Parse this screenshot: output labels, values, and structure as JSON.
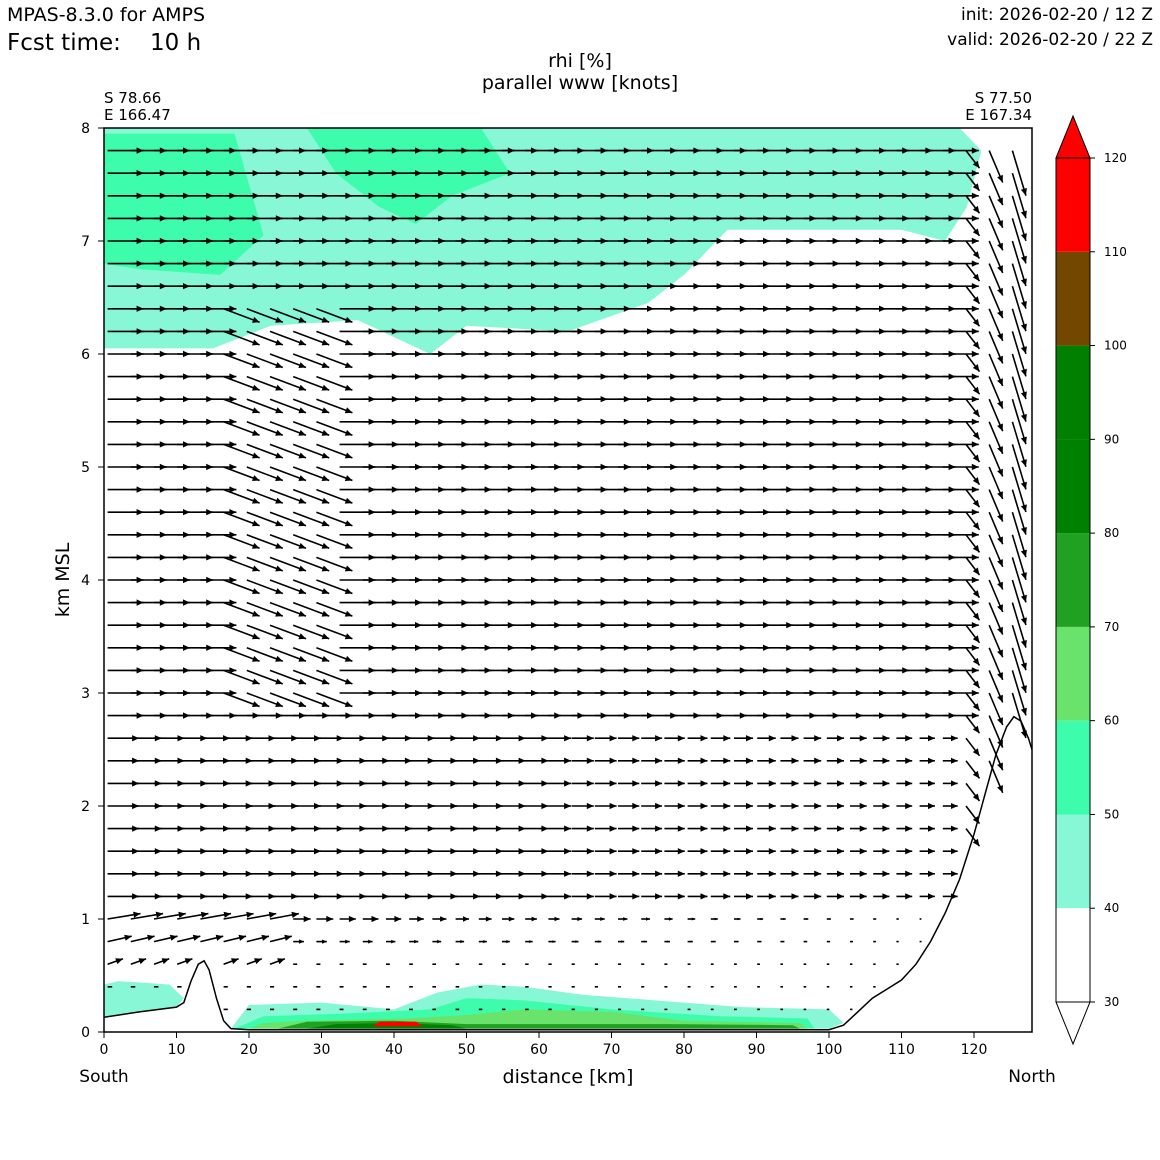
{
  "header": {
    "model": "MPAS-8.3.0 for AMPS",
    "fcst_label": "Fcst time:",
    "fcst_value": "10 h",
    "init": "init: 2026-02-20 / 12 Z",
    "valid": "valid: 2026-02-20 / 22 Z"
  },
  "chart_data": {
    "type": "cross-section",
    "title": "rhi [%]",
    "subtitle": "parallel www [knots]",
    "xlabel": "distance [km]",
    "ylabel": "km MSL",
    "xlim": [
      0,
      128
    ],
    "ylim": [
      0,
      8
    ],
    "xticks": [
      "0",
      "10",
      "20",
      "30",
      "40",
      "50",
      "60",
      "70",
      "80",
      "90",
      "100",
      "110",
      "120"
    ],
    "yticks": [
      "0",
      "1",
      "2",
      "3",
      "4",
      "5",
      "6",
      "7",
      "8"
    ],
    "left_point": {
      "lat": "S 78.66",
      "lon": "E 166.47"
    },
    "right_point": {
      "lat": "S 77.50",
      "lon": "E 167.34"
    },
    "left_end_label": "South",
    "right_end_label": "North",
    "terrain": [
      [
        0,
        0.13
      ],
      [
        5,
        0.18
      ],
      [
        10,
        0.22
      ],
      [
        11,
        0.26
      ],
      [
        12,
        0.45
      ],
      [
        13,
        0.6
      ],
      [
        13.8,
        0.63
      ],
      [
        14.5,
        0.55
      ],
      [
        15.5,
        0.3
      ],
      [
        16.5,
        0.1
      ],
      [
        17.5,
        0.03
      ],
      [
        20,
        0.02
      ],
      [
        30,
        0.02
      ],
      [
        50,
        0.02
      ],
      [
        70,
        0.02
      ],
      [
        90,
        0.02
      ],
      [
        100,
        0.02
      ],
      [
        102,
        0.06
      ],
      [
        104,
        0.18
      ],
      [
        106,
        0.3
      ],
      [
        108,
        0.38
      ],
      [
        110,
        0.46
      ],
      [
        112,
        0.6
      ],
      [
        114,
        0.8
      ],
      [
        116,
        1.05
      ],
      [
        118,
        1.35
      ],
      [
        120,
        1.75
      ],
      [
        121.5,
        2.1
      ],
      [
        123,
        2.45
      ],
      [
        124.5,
        2.7
      ],
      [
        125.5,
        2.79
      ],
      [
        126.5,
        2.75
      ],
      [
        127.5,
        2.6
      ],
      [
        128,
        2.5
      ]
    ],
    "colorbar": {
      "levels": [
        30,
        40,
        50,
        60,
        70,
        80,
        90,
        100,
        110,
        120
      ],
      "tick_labels": [
        "30",
        "40",
        "50",
        "60",
        "70",
        "80",
        "90",
        "100",
        "110",
        "120"
      ],
      "colors": [
        "#ffffff",
        "#88f7d6",
        "#3dfdad",
        "#69e36b",
        "#21a121",
        "#008000",
        "#007f00",
        "#744700",
        "#ff0000"
      ]
    },
    "rhi_regions": [
      {
        "band": "40-50",
        "color": "#88f7d6",
        "polygon": [
          [
            0,
            8
          ],
          [
            118,
            8
          ],
          [
            121,
            7.8
          ],
          [
            119,
            7.3
          ],
          [
            116,
            7.0
          ],
          [
            110,
            7.1
          ],
          [
            86,
            7.1
          ],
          [
            80,
            6.7
          ],
          [
            75,
            6.45
          ],
          [
            64,
            6.2
          ],
          [
            50,
            6.25
          ],
          [
            45,
            6.0
          ],
          [
            35,
            6.3
          ],
          [
            23,
            6.25
          ],
          [
            15,
            6.05
          ],
          [
            0,
            6.05
          ]
        ]
      },
      {
        "band": "50-60",
        "color": "#3dfdad",
        "polygon": [
          [
            0,
            7.95
          ],
          [
            18,
            7.95
          ],
          [
            20,
            7.5
          ],
          [
            22,
            7.05
          ],
          [
            16,
            6.7
          ],
          [
            5,
            6.75
          ],
          [
            0,
            6.8
          ]
        ]
      },
      {
        "band": "50-60",
        "color": "#3dfdad",
        "polygon": [
          [
            28,
            8
          ],
          [
            52,
            8
          ],
          [
            56,
            7.6
          ],
          [
            48,
            7.4
          ],
          [
            43,
            7.15
          ],
          [
            38,
            7.3
          ],
          [
            32,
            7.6
          ]
        ]
      },
      {
        "band": "40-50",
        "color": "#88f7d6",
        "polygon": [
          [
            0,
            0.13
          ],
          [
            10,
            0.22
          ],
          [
            11,
            0.3
          ],
          [
            9,
            0.42
          ],
          [
            2,
            0.45
          ],
          [
            0,
            0.42
          ]
        ]
      },
      {
        "band": "40-50",
        "color": "#88f7d6",
        "polygon": [
          [
            17.5,
            0.03
          ],
          [
            100,
            0.03
          ],
          [
            102,
            0.08
          ],
          [
            100,
            0.2
          ],
          [
            88,
            0.22
          ],
          [
            78,
            0.27
          ],
          [
            66,
            0.33
          ],
          [
            58,
            0.4
          ],
          [
            52,
            0.42
          ],
          [
            46,
            0.35
          ],
          [
            40,
            0.2
          ],
          [
            30,
            0.26
          ],
          [
            20,
            0.24
          ]
        ]
      },
      {
        "band": "50-60",
        "color": "#3dfdad",
        "polygon": [
          [
            18,
            0.03
          ],
          [
            98,
            0.03
          ],
          [
            97,
            0.12
          ],
          [
            85,
            0.14
          ],
          [
            70,
            0.2
          ],
          [
            58,
            0.28
          ],
          [
            50,
            0.3
          ],
          [
            45,
            0.2
          ],
          [
            32,
            0.16
          ],
          [
            22,
            0.14
          ]
        ]
      },
      {
        "band": "60-70",
        "color": "#69e36b",
        "polygon": [
          [
            20,
            0.03
          ],
          [
            97,
            0.03
          ],
          [
            96,
            0.08
          ],
          [
            80,
            0.1
          ],
          [
            70,
            0.18
          ],
          [
            58,
            0.2
          ],
          [
            50,
            0.15
          ],
          [
            42,
            0.12
          ],
          [
            28,
            0.1
          ],
          [
            22,
            0.08
          ]
        ]
      },
      {
        "band": "70-80",
        "color": "#21a121",
        "polygon": [
          [
            24,
            0.03
          ],
          [
            96,
            0.03
          ],
          [
            95,
            0.06
          ],
          [
            78,
            0.07
          ],
          [
            50,
            0.07
          ],
          [
            40,
            0.1
          ],
          [
            28,
            0.09
          ]
        ]
      },
      {
        "band": "80-90",
        "color": "#008000",
        "polygon": [
          [
            28,
            0.03
          ],
          [
            50,
            0.03
          ],
          [
            48,
            0.06
          ],
          [
            40,
            0.08
          ],
          [
            32,
            0.07
          ]
        ]
      },
      {
        "band": "110-120",
        "color": "#ff0000",
        "polygon": [
          [
            37,
            0.05
          ],
          [
            44,
            0.05
          ],
          [
            43,
            0.09
          ],
          [
            38,
            0.09
          ]
        ]
      }
    ]
  }
}
